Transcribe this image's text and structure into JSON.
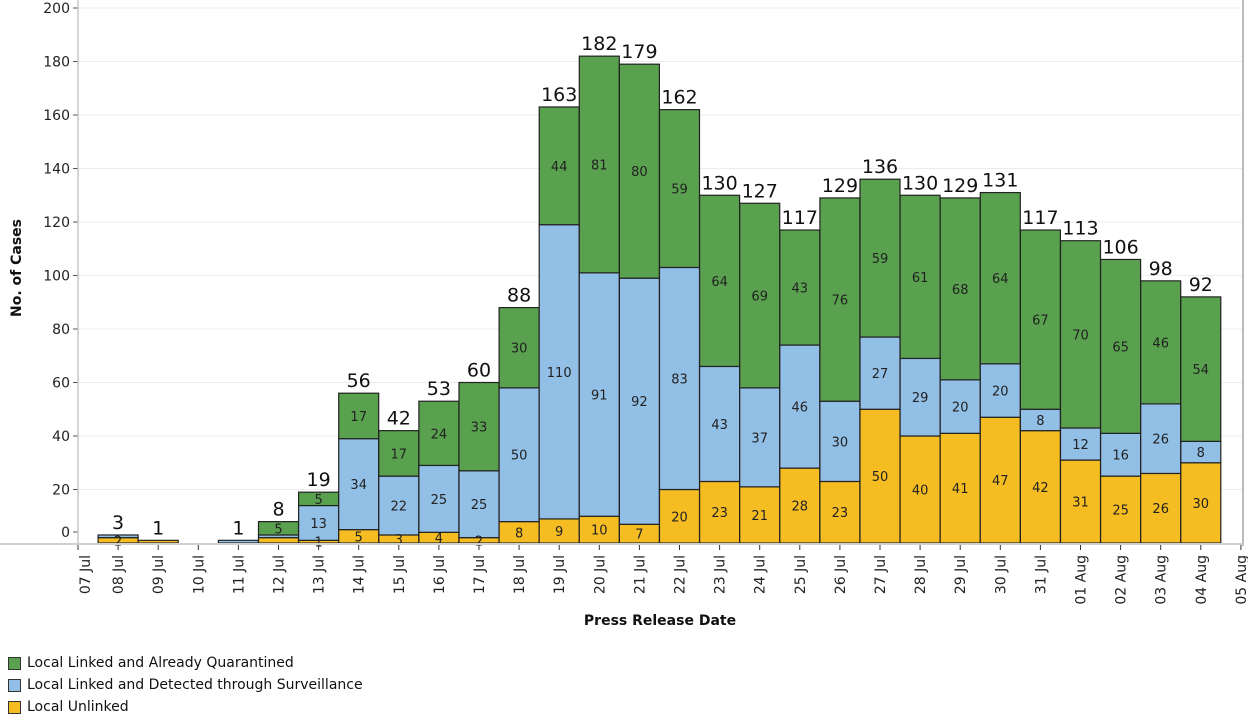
{
  "chart_data": {
    "type": "bar",
    "stacked": true,
    "title": "",
    "xlabel": "Press Release Date",
    "ylabel": "No. of Cases",
    "ylim": [
      0,
      200
    ],
    "yticks": [
      0,
      20,
      40,
      60,
      80,
      100,
      120,
      140,
      160,
      180,
      200
    ],
    "grid": true,
    "legend_position": "bottom-left",
    "x_tick_labels": [
      "07 Jul",
      "08 Jul",
      "09 Jul",
      "10 Jul",
      "11 Jul",
      "12 Jul",
      "13 Jul",
      "14 Jul",
      "15 Jul",
      "16 Jul",
      "17 Jul",
      "18 Jul",
      "19 Jul",
      "20 Jul",
      "21 Jul",
      "22 Jul",
      "23 Jul",
      "24 Jul",
      "25 Jul",
      "26 Jul",
      "27 Jul",
      "28 Jul",
      "29 Jul",
      "30 Jul",
      "31 Jul",
      "01 Aug",
      "02 Aug",
      "03 Aug",
      "04 Aug",
      "05 Aug"
    ],
    "categories": [
      "07 Jul",
      "08 Jul",
      "09 Jul",
      "10 Jul",
      "11 Jul",
      "12 Jul",
      "13 Jul",
      "14 Jul",
      "15 Jul",
      "16 Jul",
      "17 Jul",
      "18 Jul",
      "19 Jul",
      "20 Jul",
      "21 Jul",
      "22 Jul",
      "23 Jul",
      "24 Jul",
      "25 Jul",
      "26 Jul",
      "27 Jul",
      "28 Jul",
      "29 Jul",
      "30 Jul",
      "31 Jul",
      "01 Aug",
      "02 Aug",
      "03 Aug",
      "04 Aug"
    ],
    "series": [
      {
        "name": "Local Unlinked",
        "color": "#f6bd22",
        "values": [
          0,
          2,
          1,
          0,
          0,
          2,
          1,
          5,
          3,
          4,
          2,
          8,
          9,
          10,
          7,
          20,
          23,
          21,
          28,
          23,
          50,
          40,
          41,
          47,
          42,
          31,
          25,
          26,
          30
        ],
        "labels_shown": [
          false,
          true,
          false,
          false,
          false,
          false,
          true,
          true,
          true,
          true,
          true,
          true,
          true,
          true,
          true,
          true,
          true,
          true,
          true,
          true,
          true,
          true,
          true,
          true,
          true,
          true,
          true,
          true,
          true
        ]
      },
      {
        "name": "Local Linked and Detected through Surveillance",
        "color": "#92bfe6",
        "values": [
          0,
          1,
          0,
          0,
          1,
          1,
          13,
          34,
          22,
          25,
          25,
          50,
          110,
          91,
          92,
          83,
          43,
          37,
          46,
          30,
          27,
          29,
          20,
          20,
          8,
          12,
          16,
          26,
          8
        ],
        "labels_shown": [
          false,
          false,
          false,
          false,
          false,
          false,
          true,
          true,
          true,
          true,
          true,
          true,
          true,
          true,
          true,
          true,
          true,
          true,
          true,
          true,
          true,
          true,
          true,
          true,
          true,
          true,
          true,
          true,
          true
        ]
      },
      {
        "name": "Local Linked and Already Quarantined",
        "color": "#59a14f",
        "values": [
          0,
          0,
          0,
          0,
          0,
          5,
          5,
          17,
          17,
          24,
          33,
          30,
          44,
          81,
          80,
          59,
          64,
          69,
          43,
          76,
          59,
          61,
          68,
          64,
          67,
          70,
          65,
          46,
          54
        ],
        "labels_shown": [
          false,
          false,
          false,
          false,
          false,
          true,
          true,
          true,
          true,
          true,
          true,
          true,
          true,
          true,
          true,
          true,
          true,
          true,
          true,
          true,
          true,
          true,
          true,
          true,
          true,
          true,
          true,
          true,
          true
        ]
      }
    ],
    "totals": [
      0,
      3,
      1,
      0,
      1,
      8,
      19,
      56,
      42,
      53,
      60,
      88,
      163,
      182,
      179,
      162,
      130,
      127,
      117,
      129,
      136,
      130,
      129,
      131,
      117,
      113,
      106,
      98,
      92
    ]
  },
  "legend": {
    "items": [
      {
        "label": "Local Linked and Already Quarantined",
        "color": "#59a14f"
      },
      {
        "label": "Local Linked and Detected through Surveillance",
        "color": "#92bfe6"
      },
      {
        "label": "Local Unlinked",
        "color": "#f6bd22"
      }
    ]
  }
}
